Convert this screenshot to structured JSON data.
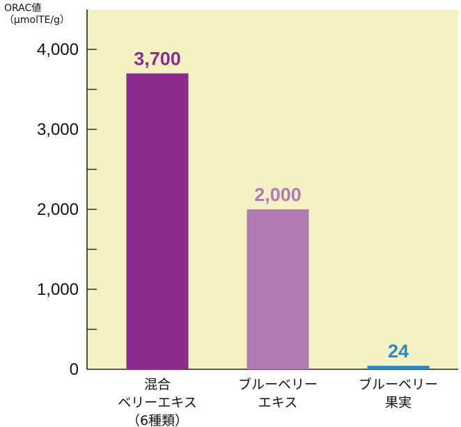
{
  "chart_data": {
    "type": "bar",
    "ylabel_line1": "ORAC値",
    "ylabel_line2": "（μmolTE/g）",
    "ylim": [
      0,
      4500
    ],
    "yticks": [
      0,
      1000,
      2000,
      3000,
      4000
    ],
    "ytick_labels": [
      "0",
      "1,000",
      "2,000",
      "3,000",
      "4,000"
    ],
    "categories": [
      [
        "混合",
        "ベリーエキス",
        "（6種類）"
      ],
      [
        "ブルーベリー",
        "エキス"
      ],
      [
        "ブルーベリー",
        "果実"
      ]
    ],
    "values": [
      3700,
      2000,
      24
    ],
    "data_labels": [
      "3,700",
      "2,000",
      "24"
    ],
    "colors": [
      "#8b2c8c",
      "#b27ab5",
      "#2e86c1"
    ],
    "background": "#f4f2c4",
    "grid": false,
    "legend": "none"
  }
}
